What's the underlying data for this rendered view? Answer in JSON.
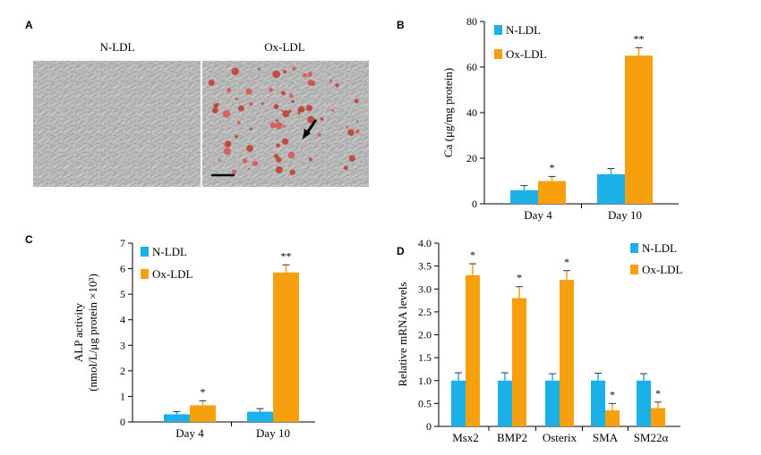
{
  "colors": {
    "n_ldl": "#1bb0e8",
    "ox_ldl": "#f7a00e",
    "axis": "#000000"
  },
  "panel_a": {
    "letter": "A",
    "left_title": "N-LDL",
    "right_title": "Ox-LDL",
    "left_image": "phase-contrast micrograph, grey cells",
    "right_image": "alizarin red stained micrograph, red calcified nodules with arrow and scale bar"
  },
  "chart_data": [
    {
      "id": "B",
      "letter": "B",
      "type": "bar",
      "categories": [
        "Day 4",
        "Day 10"
      ],
      "series": [
        {
          "name": "N-LDL",
          "values": [
            6,
            13
          ],
          "errors": [
            2,
            2.5
          ]
        },
        {
          "name": "Ox-LDL",
          "values": [
            10,
            65
          ],
          "errors": [
            2,
            3.5
          ]
        }
      ],
      "significance": [
        [
          "",
          "*"
        ],
        [
          "",
          "**"
        ]
      ],
      "ylabel": "Ca (μg/mg protein)",
      "ylim": [
        0,
        80
      ],
      "yticks": [
        "0",
        "20",
        "40",
        "60",
        "80"
      ],
      "legend": "top-left",
      "grid": false
    },
    {
      "id": "C",
      "letter": "C",
      "type": "bar",
      "categories": [
        "Day 4",
        "Day 10"
      ],
      "series": [
        {
          "name": "N-LDL",
          "values": [
            0.3,
            0.4
          ],
          "errors": [
            0.1,
            0.12
          ]
        },
        {
          "name": "Ox-LDL",
          "values": [
            0.65,
            5.85
          ],
          "errors": [
            0.18,
            0.3
          ]
        }
      ],
      "significance": [
        [
          "",
          "*"
        ],
        [
          "",
          "**"
        ]
      ],
      "ylabel_line1": "ALP activity",
      "ylabel_line2": "(nmol/L/μg protein ×10³)",
      "ylim": [
        0,
        7
      ],
      "yticks": [
        "0",
        "1",
        "2",
        "3",
        "4",
        "5",
        "6",
        "7"
      ],
      "legend": "top-left",
      "grid": false
    },
    {
      "id": "D",
      "letter": "D",
      "type": "bar",
      "categories": [
        "Msx2",
        "BMP2",
        "Osterix",
        "SMA",
        "SM22α"
      ],
      "series": [
        {
          "name": "N-LDL",
          "values": [
            1.0,
            1.0,
            1.0,
            1.0,
            1.0
          ],
          "errors": [
            0.17,
            0.17,
            0.15,
            0.16,
            0.15
          ]
        },
        {
          "name": "Ox-LDL",
          "values": [
            3.3,
            2.8,
            3.2,
            0.35,
            0.4
          ],
          "errors": [
            0.25,
            0.25,
            0.2,
            0.15,
            0.13
          ]
        }
      ],
      "significance": [
        [
          "",
          "*"
        ],
        [
          "",
          "*"
        ],
        [
          "",
          "*"
        ],
        [
          "",
          "*"
        ],
        [
          "",
          "*"
        ]
      ],
      "ylabel": "Relative mRNA levels",
      "ylim": [
        0,
        4.0
      ],
      "yticks": [
        "0",
        "0.5",
        "1.0",
        "1.5",
        "2.0",
        "2.5",
        "3.0",
        "3.5",
        "4.0"
      ],
      "legend": "top-right",
      "grid": false
    }
  ]
}
